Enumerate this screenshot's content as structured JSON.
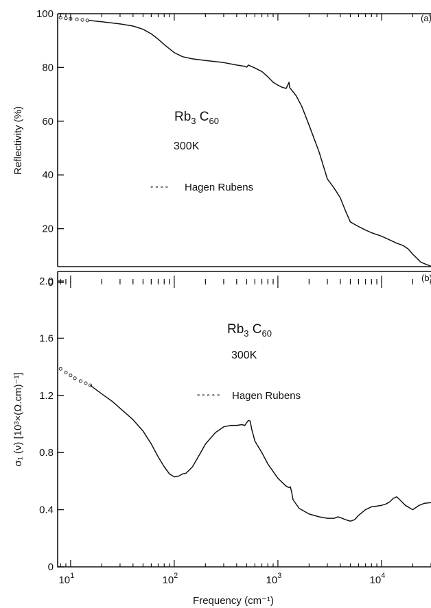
{
  "chart_data": [
    {
      "type": "line",
      "panel_label": "(a)",
      "x_scale": "log",
      "xlim": [
        7.5,
        30000
      ],
      "ylim": [
        0,
        100
      ],
      "ylabel": "Reflectivity (%)",
      "y_ticks": [
        "0",
        "20",
        "40",
        "60",
        "80",
        "100"
      ],
      "annotations": {
        "compound_main": "Rb",
        "compound_sub1": "3",
        "compound_main2": " C",
        "compound_sub2": "60",
        "temperature": "300K"
      },
      "legend": {
        "marker_sample": "∘∘∘∘",
        "label": "Hagen Rubens"
      },
      "series": [
        {
          "style": "dotted-circles",
          "x": [
            8,
            9,
            10,
            11.5,
            13,
            14.5
          ],
          "y": [
            98.5,
            98.3,
            98.1,
            97.9,
            97.7,
            97.5
          ]
        },
        {
          "style": "solid",
          "x": [
            15,
            20,
            30,
            40,
            50,
            60,
            70,
            80,
            100,
            120,
            150,
            200,
            300,
            400,
            480,
            500,
            520,
            600,
            700,
            800,
            900,
            1000,
            1100,
            1200,
            1250,
            1280,
            1300,
            1500,
            1700,
            2000,
            2500,
            3000,
            3500,
            4000,
            4500,
            5000,
            6000,
            7000,
            8000,
            9000,
            10000,
            12000,
            14000,
            16000,
            18000,
            20000,
            24000,
            30000
          ],
          "y": [
            97.5,
            97,
            96.2,
            95.4,
            94.2,
            92.5,
            90.5,
            88.5,
            85.5,
            84,
            83.2,
            82.6,
            81.8,
            80.9,
            80.4,
            80.1,
            80.9,
            79.8,
            78.5,
            76.5,
            74.5,
            73.4,
            72.6,
            72.2,
            73.6,
            74.5,
            72.5,
            69.5,
            65.5,
            58.5,
            48.5,
            38.5,
            35,
            31.5,
            26.5,
            22.5,
            20.8,
            19.5,
            18.5,
            17.8,
            17.2,
            15.8,
            14.6,
            13.8,
            12.5,
            10.5,
            7.5,
            6
          ]
        }
      ]
    },
    {
      "type": "line",
      "panel_label": "(b)",
      "x_scale": "log",
      "xlim": [
        7.5,
        30000
      ],
      "ylim": [
        0,
        2.0
      ],
      "xlabel": "Frequency (cm⁻¹)",
      "ylabel": "σ₁ (ν) [10³×(Ω.cm)⁻¹]",
      "y_ticks": [
        "0",
        "0.4",
        "0.8",
        "1.2",
        "1.6",
        "2.0"
      ],
      "x_ticks": [
        {
          "base": "10",
          "exp": "1"
        },
        {
          "base": "10",
          "exp": "2"
        },
        {
          "base": "10",
          "exp": "3"
        },
        {
          "base": "10",
          "exp": "4"
        }
      ],
      "annotations": {
        "compound_main": "Rb",
        "compound_sub1": "3",
        "compound_main2": " C",
        "compound_sub2": "60",
        "temperature": "300K"
      },
      "legend": {
        "marker_sample": "∘∘∘∘∘",
        "label": "Hagen Rubens"
      },
      "series": [
        {
          "style": "dotted-circles",
          "x": [
            8,
            9,
            10,
            11,
            12.5,
            14,
            15.5
          ],
          "y": [
            1.385,
            1.36,
            1.34,
            1.32,
            1.3,
            1.285,
            1.27
          ]
        },
        {
          "style": "solid",
          "x": [
            15.5,
            20,
            25,
            30,
            40,
            50,
            60,
            70,
            80,
            90,
            100,
            110,
            120,
            130,
            150,
            180,
            200,
            250,
            300,
            350,
            400,
            450,
            480,
            500,
            520,
            540,
            560,
            580,
            600,
            700,
            800,
            1000,
            1200,
            1280,
            1320,
            1360,
            1400,
            1600,
            2000,
            2500,
            3000,
            3500,
            3800,
            4000,
            4500,
            5000,
            5500,
            6000,
            7000,
            8000,
            9000,
            10000,
            11000,
            12000,
            13000,
            14000,
            15000,
            17000,
            20000,
            23000,
            26000,
            30000
          ],
          "y": [
            1.27,
            1.21,
            1.16,
            1.11,
            1.03,
            0.95,
            0.86,
            0.77,
            0.7,
            0.65,
            0.63,
            0.635,
            0.65,
            0.655,
            0.7,
            0.8,
            0.86,
            0.94,
            0.98,
            0.99,
            0.99,
            0.995,
            0.99,
            1.01,
            1.025,
            1.02,
            0.96,
            0.92,
            0.88,
            0.8,
            0.72,
            0.62,
            0.565,
            0.555,
            0.56,
            0.52,
            0.47,
            0.41,
            0.37,
            0.35,
            0.34,
            0.34,
            0.35,
            0.345,
            0.33,
            0.32,
            0.33,
            0.36,
            0.4,
            0.42,
            0.425,
            0.43,
            0.44,
            0.455,
            0.48,
            0.49,
            0.47,
            0.43,
            0.4,
            0.43,
            0.445,
            0.45
          ]
        }
      ]
    }
  ]
}
